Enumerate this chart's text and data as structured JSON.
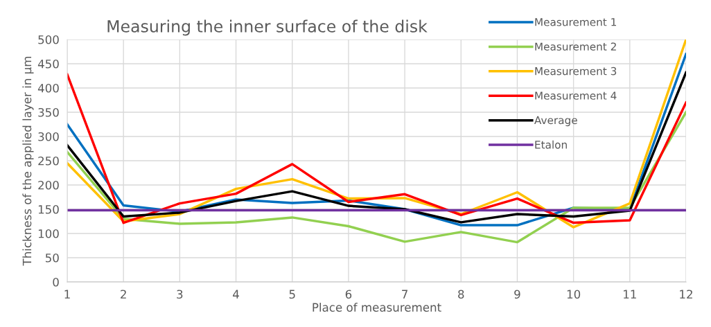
{
  "chart_data": {
    "type": "line",
    "title": "Measuring the inner surface of the disk",
    "xlabel": "Place of measurement",
    "ylabel": "Thickness of the applied layer in µm",
    "x": [
      1,
      2,
      3,
      4,
      5,
      6,
      7,
      8,
      9,
      10,
      11,
      12
    ],
    "series": [
      {
        "name": "Measurement 1",
        "color": "#0070c0",
        "values": [
          325,
          158,
          145,
          170,
          163,
          168,
          150,
          117,
          117,
          153,
          150,
          470
        ]
      },
      {
        "name": "Measurement 2",
        "color": "#92d050",
        "values": [
          268,
          130,
          120,
          123,
          133,
          115,
          83,
          103,
          82,
          153,
          153,
          350
        ]
      },
      {
        "name": "Measurement 3",
        "color": "#ffc000",
        "values": [
          245,
          125,
          140,
          192,
          212,
          172,
          173,
          140,
          185,
          113,
          162,
          500
        ]
      },
      {
        "name": "Measurement 4",
        "color": "#ff0000",
        "values": [
          428,
          122,
          162,
          182,
          243,
          165,
          181,
          138,
          172,
          122,
          127,
          370
        ]
      },
      {
        "name": "Average",
        "color": "#000000",
        "values": [
          282,
          135,
          143,
          167,
          187,
          157,
          150,
          123,
          140,
          135,
          147,
          432
        ]
      },
      {
        "name": "Etalon",
        "color": "#7030a0",
        "values": [
          148,
          148,
          148,
          148,
          148,
          148,
          148,
          148,
          148,
          148,
          148,
          148
        ]
      }
    ],
    "xlim": [
      1,
      12
    ],
    "xticks": [
      1,
      2,
      3,
      4,
      5,
      6,
      7,
      8,
      9,
      10,
      11,
      12
    ],
    "ylim": [
      0,
      500
    ],
    "yticks": [
      0,
      50,
      100,
      150,
      200,
      250,
      300,
      350,
      400,
      450,
      500
    ],
    "grid": true,
    "legend": "top right",
    "marker": "none",
    "line_style": "solid"
  }
}
